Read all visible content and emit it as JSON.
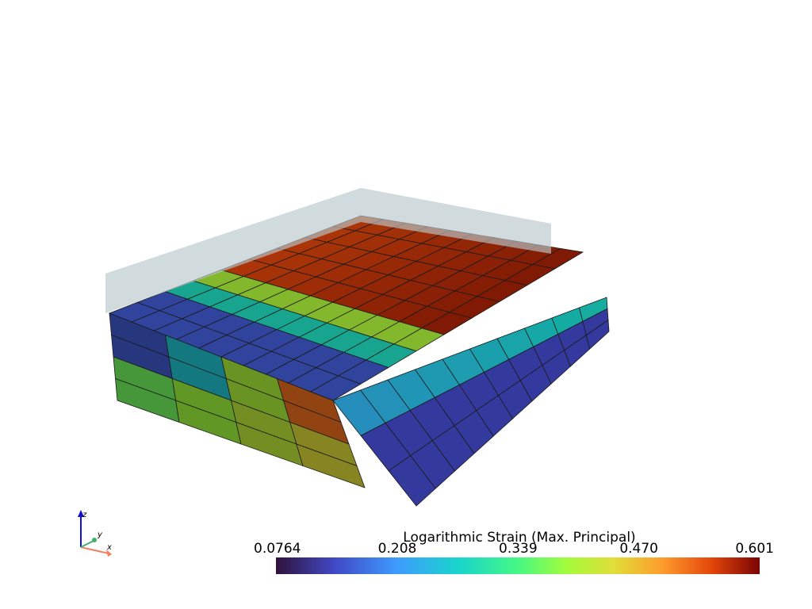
{
  "colorbar": {
    "title": "Logarithmic Strain (Max. Principal)",
    "range": [
      0.0764,
      0.601
    ],
    "ticks": [
      0.0764,
      0.208,
      0.339,
      {
        "value": 0.47,
        "label": "0.470"
      },
      0.601
    ]
  },
  "axes": {
    "x": "x",
    "y": "y",
    "z": "z"
  }
}
